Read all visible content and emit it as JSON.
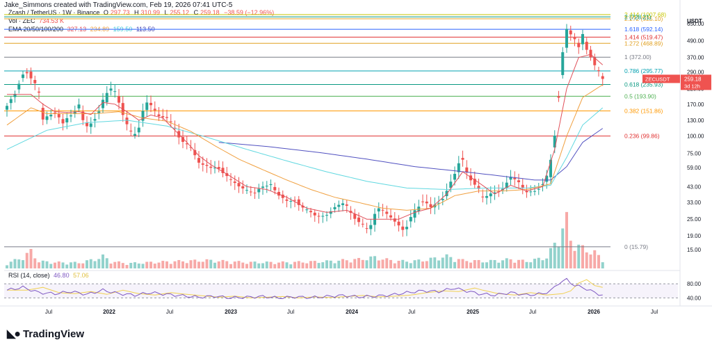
{
  "caption": "Jake_Simmons created with TradingView.com, Feb 19, 2026 07:41 UTC-5",
  "legend": {
    "symbol": "Zcash / TetherUS · 1W · Binance",
    "o_label": "O",
    "o": "297.73",
    "h_label": "H",
    "h": "310.99",
    "l_label": "L",
    "l": "255.12",
    "c_label": "C",
    "c": "259.18",
    "chg": "−38.59 (−12.96%)",
    "vol_label": "Vol · ZEC",
    "vol": "734.53 K",
    "ema_label": "EMA 20/50/100/200",
    "ema20": "327.13",
    "ema50": "234.89",
    "ema100": "159.50",
    "ema200": "113.50",
    "rsi_label": "RSI (14, close)",
    "rsi": "46.80",
    "rsi_ma": "57.06"
  },
  "logo_text": "TradingView",
  "colors": {
    "up": "#26a69a",
    "down": "#ef5350",
    "ema20": "#e0505a",
    "ema50": "#f0a040",
    "ema100": "#60d8e0",
    "ema200": "#5050c0",
    "rsi": "#7e57c2",
    "rsi_ma": "#f0d050"
  },
  "chart_data": {
    "type": "candlestick",
    "symbol": "ZECUSDT",
    "timeframe": "1W",
    "y_scale": "log",
    "ylim": [
      11,
      900
    ],
    "current_price": "259.18",
    "current_price_sublabel": "3d 12h",
    "price_axis_title": "USDT",
    "y_ticks": [
      "650.00",
      "490.00",
      "370.00",
      "290.00",
      "220.00",
      "170.00",
      "130.00",
      "100.00",
      "75.00",
      "59.00",
      "43.00",
      "33.00",
      "25.00",
      "19.00",
      "15.00"
    ],
    "x_ticks": [
      "Jul",
      "2022",
      "Jul",
      "2023",
      "Jul",
      "2024",
      "Jul",
      "2025",
      "Jul",
      "2026",
      "Jul"
    ],
    "fib_levels": [
      {
        "ratio": "2.414",
        "value": 1008.0,
        "label": "2.414 (1007.68)",
        "color": "#c6c600"
      },
      {
        "ratio": "2.272",
        "value": 925.0,
        "label": "2.272 (925.10)",
        "color": "#e0a020"
      },
      {
        "ratio": "2",
        "value": 728.21,
        "label": "2 (728.21)",
        "color": "#089981"
      },
      {
        "ratio": "1.618",
        "value": 592.14,
        "label": "1.618 (592.14)",
        "color": "#2962ff"
      },
      {
        "ratio": "1.414",
        "value": 519.47,
        "label": "1.414 (519.47)",
        "color": "#e03030"
      },
      {
        "ratio": "1.272",
        "value": 468.89,
        "label": "1.272 (468.89)",
        "color": "#e0a020"
      },
      {
        "ratio": "1",
        "value": 372.0,
        "label": "1 (372.00)",
        "color": "#787b86"
      },
      {
        "ratio": "0.786",
        "value": 295.77,
        "label": "0.786 (295.77)",
        "color": "#00a0b0"
      },
      {
        "ratio": "0.618",
        "value": 235.93,
        "label": "0.618 (235.93)",
        "color": "#089981"
      },
      {
        "ratio": "0.5",
        "value": 193.9,
        "label": "0.5 (193.90)",
        "color": "#4caf50"
      },
      {
        "ratio": "0.382",
        "value": 151.86,
        "label": "0.382 (151.86)",
        "color": "#ff9800"
      },
      {
        "ratio": "0.236",
        "value": 99.86,
        "label": "0.236 (99.86)",
        "color": "#e03030"
      },
      {
        "ratio": "0",
        "value": 15.79,
        "label": "0 (15.79)",
        "color": "#787b86"
      }
    ],
    "close_path": [
      [
        0,
        155
      ],
      [
        3,
        250
      ],
      [
        5,
        300
      ],
      [
        8,
        200
      ],
      [
        9,
        130
      ],
      [
        12,
        150
      ],
      [
        14,
        120
      ],
      [
        18,
        170
      ],
      [
        20,
        115
      ],
      [
        23,
        150
      ],
      [
        26,
        230
      ],
      [
        29,
        155
      ],
      [
        31,
        100
      ],
      [
        33,
        110
      ],
      [
        35,
        175
      ],
      [
        38,
        140
      ],
      [
        40,
        135
      ],
      [
        43,
        100
      ],
      [
        46,
        80
      ],
      [
        48,
        65
      ],
      [
        51,
        58
      ],
      [
        53,
        60
      ],
      [
        55,
        50
      ],
      [
        58,
        44
      ],
      [
        60,
        40
      ],
      [
        62,
        38
      ],
      [
        64,
        43
      ],
      [
        66,
        45
      ],
      [
        68,
        38
      ],
      [
        70,
        33
      ],
      [
        72,
        35
      ],
      [
        74,
        30
      ],
      [
        76,
        28
      ],
      [
        78,
        26
      ],
      [
        80,
        27
      ],
      [
        82,
        30
      ],
      [
        84,
        33
      ],
      [
        86,
        28
      ],
      [
        88,
        24
      ],
      [
        90,
        21
      ],
      [
        91,
        22
      ],
      [
        93,
        30
      ],
      [
        95,
        27
      ],
      [
        97,
        25
      ],
      [
        99,
        20
      ],
      [
        101,
        25
      ],
      [
        102,
        28
      ],
      [
        104,
        35
      ],
      [
        106,
        30
      ],
      [
        108,
        33
      ],
      [
        110,
        40
      ],
      [
        112,
        50
      ],
      [
        113,
        70
      ],
      [
        114,
        66
      ],
      [
        115,
        55
      ],
      [
        117,
        45
      ],
      [
        119,
        35
      ],
      [
        121,
        38
      ],
      [
        123,
        40
      ],
      [
        125,
        44
      ],
      [
        126,
        52
      ],
      [
        128,
        45
      ],
      [
        130,
        39
      ],
      [
        132,
        40
      ],
      [
        134,
        45
      ],
      [
        136,
        55
      ],
      [
        137,
        120
      ],
      [
        138,
        250
      ],
      [
        139,
        400
      ],
      [
        140,
        620
      ],
      [
        141,
        560
      ],
      [
        142,
        480
      ],
      [
        143,
        420
      ],
      [
        144,
        560
      ],
      [
        145,
        450
      ],
      [
        146,
        380
      ],
      [
        147,
        300
      ],
      [
        148,
        298
      ],
      [
        149,
        259
      ]
    ],
    "ema20": [
      [
        0,
        200
      ],
      [
        6,
        200
      ],
      [
        9,
        170
      ],
      [
        12,
        150
      ],
      [
        15,
        148
      ],
      [
        18,
        150
      ],
      [
        21,
        143
      ],
      [
        24,
        175
      ],
      [
        27,
        170
      ],
      [
        30,
        150
      ],
      [
        33,
        130
      ],
      [
        36,
        142
      ],
      [
        39,
        135
      ],
      [
        42,
        110
      ],
      [
        45,
        90
      ],
      [
        48,
        72
      ],
      [
        51,
        62
      ],
      [
        55,
        53
      ],
      [
        60,
        43
      ],
      [
        65,
        41
      ],
      [
        70,
        36
      ],
      [
        75,
        30
      ],
      [
        80,
        28
      ],
      [
        85,
        29
      ],
      [
        90,
        25
      ],
      [
        94,
        25
      ],
      [
        98,
        25
      ],
      [
        102,
        28
      ],
      [
        106,
        30
      ],
      [
        110,
        38
      ],
      [
        114,
        55
      ],
      [
        118,
        46
      ],
      [
        122,
        38
      ],
      [
        126,
        44
      ],
      [
        130,
        40
      ],
      [
        134,
        43
      ],
      [
        137,
        80
      ],
      [
        140,
        220
      ],
      [
        143,
        370
      ],
      [
        146,
        390
      ],
      [
        149,
        327
      ]
    ],
    "ema50": [
      [
        0,
        120
      ],
      [
        6,
        160
      ],
      [
        10,
        145
      ],
      [
        16,
        145
      ],
      [
        22,
        145
      ],
      [
        28,
        150
      ],
      [
        34,
        135
      ],
      [
        40,
        128
      ],
      [
        46,
        108
      ],
      [
        52,
        85
      ],
      [
        58,
        68
      ],
      [
        64,
        57
      ],
      [
        70,
        48
      ],
      [
        76,
        41
      ],
      [
        82,
        36
      ],
      [
        88,
        33
      ],
      [
        94,
        30
      ],
      [
        100,
        29
      ],
      [
        106,
        30
      ],
      [
        112,
        37
      ],
      [
        118,
        40
      ],
      [
        124,
        40
      ],
      [
        130,
        41
      ],
      [
        136,
        45
      ],
      [
        140,
        100
      ],
      [
        144,
        190
      ],
      [
        149,
        235
      ]
    ],
    "ema100": [
      [
        0,
        80
      ],
      [
        10,
        110
      ],
      [
        20,
        125
      ],
      [
        30,
        130
      ],
      [
        40,
        118
      ],
      [
        50,
        98
      ],
      [
        60,
        80
      ],
      [
        70,
        66
      ],
      [
        80,
        55
      ],
      [
        90,
        47
      ],
      [
        100,
        42
      ],
      [
        110,
        41
      ],
      [
        120,
        42
      ],
      [
        130,
        42
      ],
      [
        136,
        44
      ],
      [
        140,
        70
      ],
      [
        144,
        120
      ],
      [
        149,
        160
      ]
    ],
    "ema200": [
      [
        53,
        90
      ],
      [
        65,
        84
      ],
      [
        78,
        76
      ],
      [
        90,
        68
      ],
      [
        102,
        60
      ],
      [
        112,
        56
      ],
      [
        122,
        52
      ],
      [
        132,
        48
      ],
      [
        136,
        48
      ],
      [
        140,
        60
      ],
      [
        144,
        90
      ],
      [
        149,
        113.5
      ]
    ],
    "volume_path": [
      [
        0,
        0.25
      ],
      [
        2,
        0.4
      ],
      [
        4,
        0.55
      ],
      [
        6,
        0.85
      ],
      [
        8,
        0.35
      ],
      [
        12,
        0.3
      ],
      [
        18,
        0.28
      ],
      [
        22,
        0.45
      ],
      [
        24,
        0.6
      ],
      [
        26,
        0.35
      ],
      [
        30,
        0.25
      ],
      [
        36,
        0.3
      ],
      [
        42,
        0.35
      ],
      [
        50,
        0.4
      ],
      [
        60,
        0.3
      ],
      [
        70,
        0.3
      ],
      [
        80,
        0.35
      ],
      [
        88,
        0.45
      ],
      [
        92,
        0.55
      ],
      [
        96,
        0.4
      ],
      [
        100,
        0.35
      ],
      [
        104,
        0.4
      ],
      [
        110,
        0.6
      ],
      [
        114,
        0.4
      ],
      [
        120,
        0.35
      ],
      [
        126,
        0.45
      ],
      [
        130,
        0.35
      ],
      [
        135,
        0.55
      ],
      [
        137,
        1.2
      ],
      [
        139,
        2.0
      ],
      [
        140,
        2.4
      ],
      [
        141,
        1.4
      ],
      [
        143,
        1.1
      ],
      [
        145,
        0.9
      ],
      [
        147,
        0.8
      ],
      [
        149,
        0.4
      ]
    ],
    "rsi_levels": {
      "upper": 80,
      "lower": 40,
      "upper_label": "80.00",
      "lower_label": "40.00"
    },
    "rsi_path": [
      [
        0,
        62
      ],
      [
        4,
        70
      ],
      [
        8,
        55
      ],
      [
        12,
        52
      ],
      [
        16,
        58
      ],
      [
        20,
        50
      ],
      [
        24,
        62
      ],
      [
        28,
        52
      ],
      [
        32,
        48
      ],
      [
        36,
        55
      ],
      [
        40,
        50
      ],
      [
        44,
        46
      ],
      [
        48,
        42
      ],
      [
        52,
        45
      ],
      [
        56,
        40
      ],
      [
        60,
        42
      ],
      [
        64,
        44
      ],
      [
        68,
        40
      ],
      [
        72,
        43
      ],
      [
        76,
        41
      ],
      [
        80,
        44
      ],
      [
        84,
        47
      ],
      [
        88,
        43
      ],
      [
        92,
        45
      ],
      [
        96,
        48
      ],
      [
        100,
        55
      ],
      [
        104,
        60
      ],
      [
        108,
        58
      ],
      [
        112,
        68
      ],
      [
        114,
        62
      ],
      [
        118,
        52
      ],
      [
        122,
        48
      ],
      [
        126,
        55
      ],
      [
        130,
        48
      ],
      [
        134,
        52
      ],
      [
        136,
        60
      ],
      [
        138,
        82
      ],
      [
        140,
        92
      ],
      [
        142,
        75
      ],
      [
        144,
        70
      ],
      [
        146,
        60
      ],
      [
        149,
        47
      ]
    ]
  }
}
